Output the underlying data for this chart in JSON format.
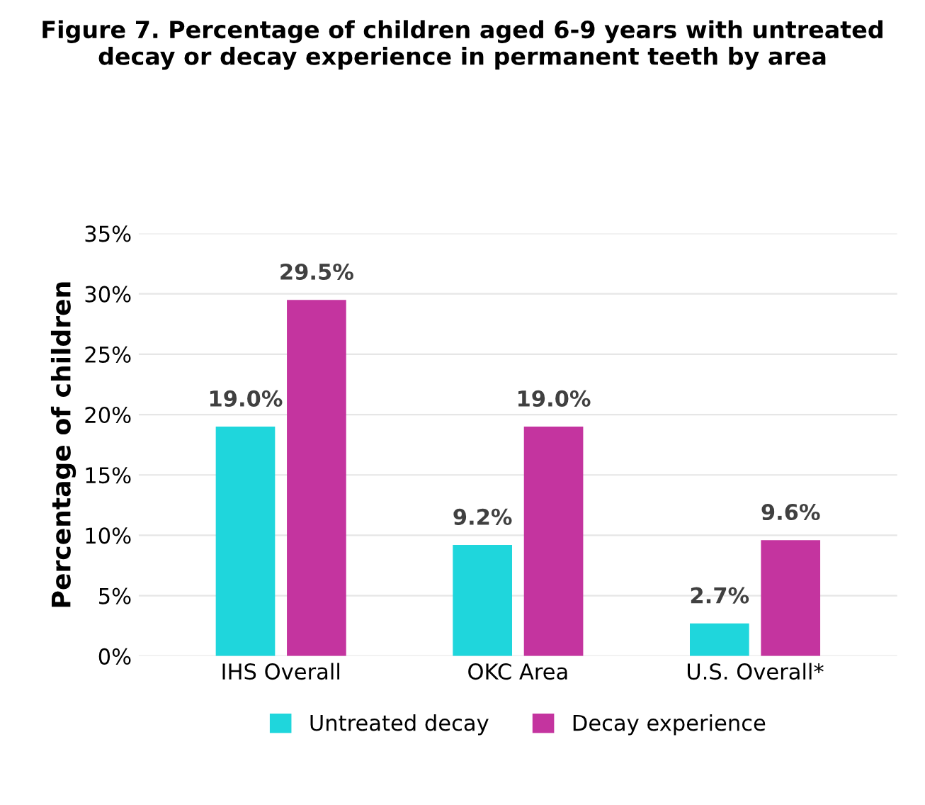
{
  "chart_data": {
    "type": "bar",
    "title": "Figure 7. Percentage of children aged 6-9 years with untreated decay or decay experience in permanent teeth by area",
    "ylabel": "Percentage of children",
    "categories": [
      "IHS Overall",
      "OKC Area",
      "U.S. Overall*"
    ],
    "series": [
      {
        "name": "Untreated decay",
        "color": "#1fd6dc",
        "values": [
          19.0,
          9.2,
          2.7
        ],
        "value_labels": [
          "19.0%",
          "9.2%",
          "2.7%"
        ]
      },
      {
        "name": "Decay experience",
        "color": "#c4349f",
        "values": [
          29.5,
          19.0,
          9.6
        ],
        "value_labels": [
          "29.5%",
          "19.0%",
          "9.6%"
        ]
      }
    ],
    "ylim": [
      0,
      35
    ],
    "yticks": [
      {
        "value": 0,
        "label": "0%"
      },
      {
        "value": 5,
        "label": "5%"
      },
      {
        "value": 10,
        "label": "10%"
      },
      {
        "value": 15,
        "label": "15%"
      },
      {
        "value": 20,
        "label": "20%"
      },
      {
        "value": 25,
        "label": "25%"
      },
      {
        "value": 30,
        "label": "30%"
      },
      {
        "value": 35,
        "label": "35%"
      }
    ],
    "grid": "y",
    "legend": "bottom"
  }
}
